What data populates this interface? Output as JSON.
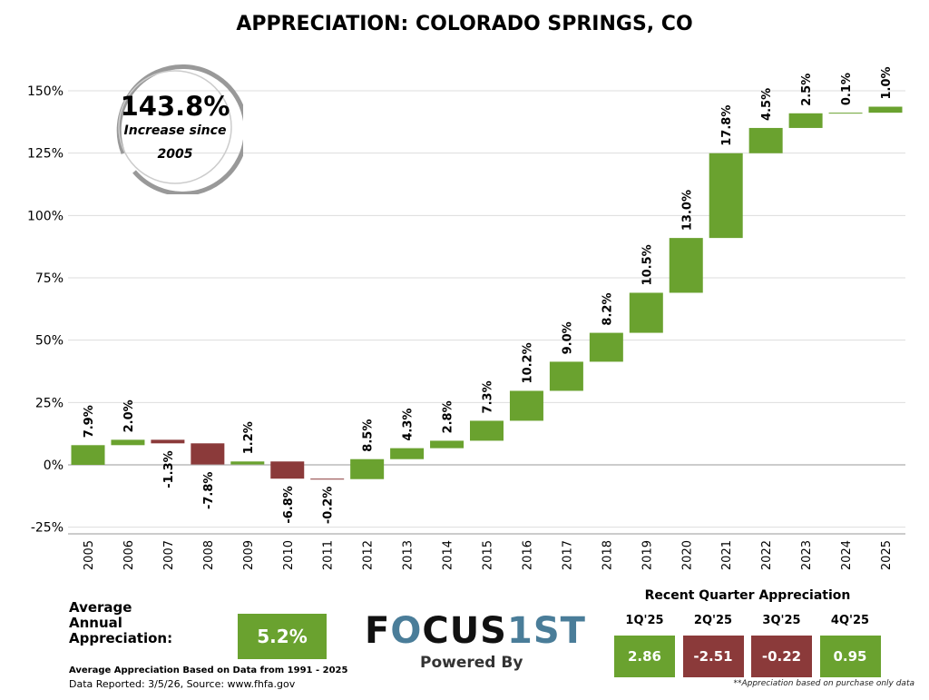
{
  "chart_data": {
    "type": "waterfall",
    "title": "APPRECIATION:  COLORADO SPRINGS, CO",
    "categories": [
      "2005",
      "2006",
      "2007",
      "2008",
      "2009",
      "2010",
      "2011",
      "2012",
      "2013",
      "2014",
      "2015",
      "2016",
      "2017",
      "2018",
      "2019",
      "2020",
      "2021",
      "2022",
      "2023",
      "2024",
      "2025"
    ],
    "values": [
      7.9,
      2.0,
      -1.3,
      -7.8,
      1.2,
      -6.8,
      -0.2,
      8.5,
      4.3,
      2.8,
      7.3,
      10.2,
      9.0,
      8.2,
      10.5,
      13.0,
      17.8,
      4.5,
      2.5,
      0.1,
      1.0
    ],
    "labels": [
      "7.9%",
      "2.0%",
      "-1.3%",
      "-7.8%",
      "1.2%",
      "-6.8%",
      "-0.2%",
      "8.5%",
      "4.3%",
      "2.8%",
      "7.3%",
      "10.2%",
      "9.0%",
      "8.2%",
      "10.5%",
      "13.0%",
      "17.8%",
      "4.5%",
      "2.5%",
      "0.1%",
      "1.0%"
    ],
    "compounding": true,
    "ylim": [
      -27,
      162
    ],
    "yticks": [
      -25,
      0,
      25,
      50,
      75,
      100,
      125,
      150
    ],
    "ytick_labels": [
      "-25%",
      "0%",
      "25%",
      "50%",
      "75%",
      "100%",
      "125%",
      "150%"
    ],
    "grid": true,
    "colors": {
      "positive": "#6aa22f",
      "negative": "#8b3a3a"
    }
  },
  "summary": {
    "value": "143.8%",
    "line1": "Increase since",
    "line2": "2005"
  },
  "average": {
    "label_lines": [
      "Average",
      "Annual",
      "Appreciation:"
    ],
    "value": "5.2%",
    "note": "Average Appreciation Based on Data from 1991 - 2025",
    "source": "Data Reported: 3/5/26, Source: www.fhfa.gov"
  },
  "logo": {
    "text_a": "F",
    "text_o": "O",
    "text_b": "CUS",
    "text_c": "1ST",
    "powered": "Powered By"
  },
  "quarters": {
    "title": "Recent Quarter Appreciation",
    "items": [
      {
        "label": "1Q'25",
        "value": "2.86",
        "positive": true
      },
      {
        "label": "2Q'25",
        "value": "-2.51",
        "positive": false
      },
      {
        "label": "3Q'25",
        "value": "-0.22",
        "positive": false
      },
      {
        "label": "4Q'25",
        "value": "0.95",
        "positive": true
      }
    ],
    "footnote": "**Appreciation based on purchase only data"
  }
}
